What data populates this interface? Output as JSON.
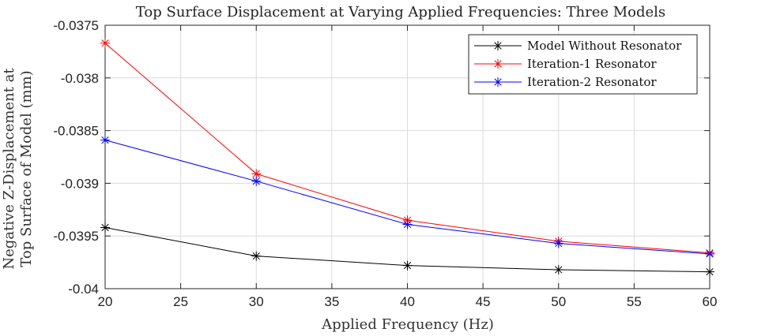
{
  "chart_data": {
    "type": "line",
    "title": "Top Surface Displacement at Varying Applied Frequencies: Three Models",
    "xlabel": "Applied Frequency (Hz)",
    "ylabel_lines": [
      "Negative Z-Displacement at",
      "Top Surface of Model (mm)"
    ],
    "x": [
      20,
      30,
      40,
      50,
      60
    ],
    "xlim": [
      20,
      60
    ],
    "ylim": [
      -0.04,
      -0.0375
    ],
    "xticks": [
      20,
      25,
      30,
      35,
      40,
      45,
      50,
      55,
      60
    ],
    "xtick_labels": [
      "20",
      "25",
      "30",
      "35",
      "40",
      "45",
      "50",
      "55",
      "60"
    ],
    "yticks": [
      -0.04,
      -0.0395,
      -0.039,
      -0.0385,
      -0.038,
      -0.0375
    ],
    "ytick_labels": [
      "-0.04",
      "-0.0395",
      "-0.039",
      "-0.0385",
      "-0.038",
      "-0.0375"
    ],
    "grid": true,
    "legend_position": "top-right",
    "series": [
      {
        "name": "Model Without Resonator",
        "color": "#000000",
        "marker": "asterisk",
        "values": [
          -0.03942,
          -0.03969,
          -0.03978,
          -0.03982,
          -0.03984
        ]
      },
      {
        "name": "Iteration-1 Resonator",
        "color": "#ff0000",
        "marker": "asterisk",
        "values": [
          -0.03767,
          -0.03891,
          -0.03935,
          -0.03955,
          -0.03966
        ]
      },
      {
        "name": "Iteration-2 Resonator",
        "color": "#0000ff",
        "marker": "asterisk",
        "values": [
          -0.03859,
          -0.03898,
          -0.03939,
          -0.03957,
          -0.03967
        ]
      }
    ]
  }
}
